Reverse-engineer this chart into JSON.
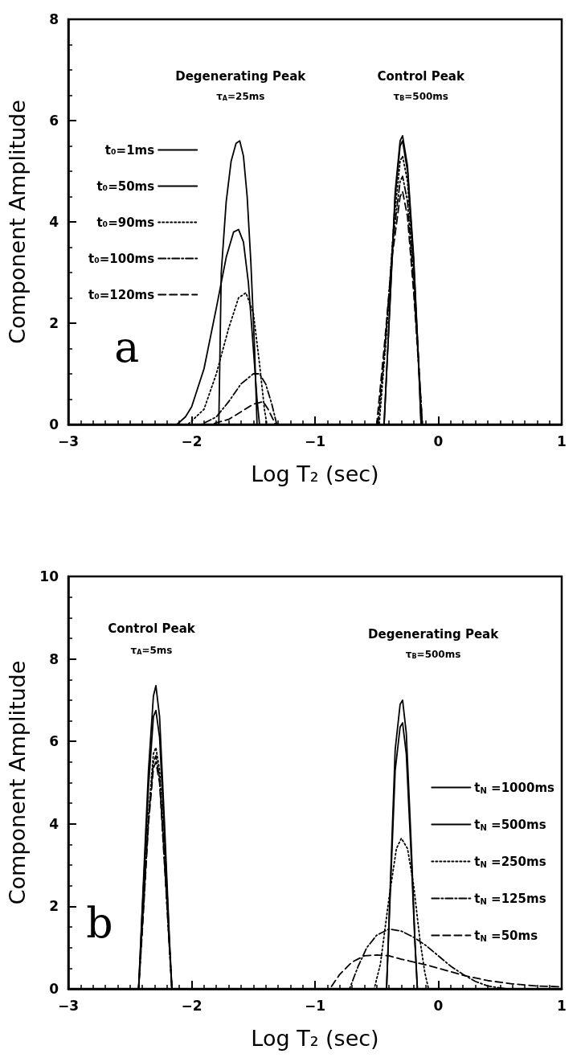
{
  "chart_data": [
    {
      "type": "line",
      "xlabel": "Log T₂ (sec)",
      "ylabel": "Component Amplitude",
      "xlim": [
        -3,
        1
      ],
      "xticks": [
        -3,
        -2,
        -1,
        0,
        1
      ],
      "ylim": [
        0,
        8
      ],
      "yticks": [
        0,
        2,
        4,
        6,
        8
      ],
      "grid": false,
      "legend": "left",
      "marker": "none",
      "annotations": [
        "Degenerating Peak",
        "τ$_{A}$=25ms",
        "Control Peak",
        "τ$_{B}$=500ms",
        "a"
      ],
      "series": [
        {
          "name": "t₀=1ms",
          "color": "#000000",
          "line_style": "solid",
          "x": [
            -3,
            -1.78,
            -1.76,
            -1.72,
            -1.68,
            -1.64,
            -1.61,
            -1.58,
            -1.55,
            -1.52,
            -1.49,
            -1.47,
            -0.44,
            -0.4,
            -0.35,
            -0.31,
            -0.29,
            -0.25,
            -0.2,
            -0.16,
            -0.14,
            1
          ],
          "values": [
            0,
            0,
            3.0,
            4.4,
            5.2,
            5.55,
            5.6,
            5.3,
            4.5,
            3.2,
            1.5,
            0,
            0,
            2.0,
            4.6,
            5.6,
            5.7,
            5.1,
            3.3,
            1.2,
            0,
            0
          ]
        },
        {
          "name": "t₀=50ms",
          "color": "#000000",
          "line_style": "solid",
          "x": [
            -3,
            -2.12,
            -2.05,
            -2.0,
            -1.9,
            -1.8,
            -1.72,
            -1.66,
            -1.62,
            -1.58,
            -1.54,
            -1.5,
            -1.47,
            -1.45,
            -0.44,
            -0.4,
            -0.35,
            -0.31,
            -0.29,
            -0.25,
            -0.2,
            -0.16,
            -0.14,
            1
          ],
          "values": [
            0,
            0,
            0.15,
            0.35,
            1.1,
            2.3,
            3.3,
            3.8,
            3.85,
            3.6,
            2.8,
            1.5,
            0.5,
            0,
            0,
            2.0,
            4.5,
            5.5,
            5.6,
            5.0,
            3.2,
            1.2,
            0,
            0
          ]
        },
        {
          "name": "t₀=90ms",
          "color": "#000000",
          "line_style": "dotted",
          "x": [
            -3,
            -2.03,
            -1.9,
            -1.8,
            -1.7,
            -1.62,
            -1.56,
            -1.5,
            -1.45,
            -1.41,
            -1.39,
            -0.48,
            -0.42,
            -0.36,
            -0.31,
            -0.29,
            -0.25,
            -0.2,
            -0.15,
            -0.13,
            1
          ],
          "values": [
            0,
            0,
            0.3,
            1.0,
            1.9,
            2.5,
            2.6,
            2.2,
            1.2,
            0.3,
            0,
            0,
            1.8,
            4.0,
            5.2,
            5.3,
            4.8,
            3.0,
            0.8,
            0,
            0
          ]
        },
        {
          "name": "t₀=100ms",
          "color": "#000000",
          "line_style": "dashdot",
          "x": [
            -3,
            -1.92,
            -1.8,
            -1.7,
            -1.6,
            -1.5,
            -1.45,
            -1.4,
            -1.35,
            -1.31,
            -0.49,
            -0.43,
            -0.37,
            -0.31,
            -0.29,
            -0.25,
            -0.2,
            -0.15,
            -0.13,
            1
          ],
          "values": [
            0,
            0,
            0.15,
            0.45,
            0.8,
            1.0,
            1.0,
            0.8,
            0.4,
            0,
            0,
            1.6,
            3.6,
            4.8,
            4.9,
            4.4,
            2.8,
            0.8,
            0,
            0
          ]
        },
        {
          "name": "t₀=120ms",
          "color": "#000000",
          "line_style": "dashed",
          "x": [
            -3,
            -1.85,
            -1.7,
            -1.6,
            -1.5,
            -1.42,
            -1.38,
            -1.34,
            -1.32,
            -0.5,
            -0.44,
            -0.37,
            -0.31,
            -0.29,
            -0.25,
            -0.2,
            -0.15,
            -0.13,
            1
          ],
          "values": [
            0,
            0,
            0.1,
            0.25,
            0.4,
            0.45,
            0.3,
            0.1,
            0,
            0,
            1.5,
            3.4,
            4.5,
            4.6,
            4.1,
            2.6,
            0.8,
            0,
            0
          ]
        }
      ]
    },
    {
      "type": "line",
      "xlabel": "Log T₂ (sec)",
      "ylabel": "Component Amplitude",
      "xlim": [
        -3,
        1
      ],
      "xticks": [
        -3,
        -2,
        -1,
        0,
        1
      ],
      "ylim": [
        0,
        10
      ],
      "yticks": [
        0,
        2,
        4,
        6,
        8,
        10
      ],
      "grid": false,
      "legend": "right",
      "marker": "none",
      "annotations": [
        "Control Peak",
        "τ$_{A}$=5ms",
        "Degenerating Peak",
        "τ$_{B}$=500ms",
        "b"
      ],
      "series": [
        {
          "name": "t$_{N}$ =1000ms",
          "color": "#000000",
          "line_style": "solid",
          "x": [
            -3,
            -2.43,
            -2.4,
            -2.35,
            -2.31,
            -2.29,
            -2.26,
            -2.22,
            -2.18,
            -2.16,
            -0.42,
            -0.39,
            -0.35,
            -0.31,
            -0.29,
            -0.26,
            -0.22,
            -0.19,
            -0.17,
            1
          ],
          "values": [
            0,
            0,
            2.0,
            5.3,
            7.1,
            7.35,
            6.6,
            4.0,
            1.2,
            0,
            0,
            2.5,
            5.8,
            6.9,
            7.0,
            6.2,
            3.5,
            1.2,
            0,
            0
          ]
        },
        {
          "name": "t$_{N}$ =500ms",
          "color": "#000000",
          "line_style": "solid",
          "x": [
            -3,
            -2.43,
            -2.4,
            -2.35,
            -2.31,
            -2.29,
            -2.26,
            -2.22,
            -2.18,
            -2.16,
            -0.42,
            -0.39,
            -0.35,
            -0.31,
            -0.29,
            -0.26,
            -0.22,
            -0.19,
            -0.17,
            1
          ],
          "values": [
            0,
            0,
            1.9,
            4.9,
            6.6,
            6.75,
            6.1,
            3.7,
            1.1,
            0,
            0,
            2.3,
            5.3,
            6.35,
            6.45,
            5.7,
            3.2,
            1.1,
            0,
            0
          ]
        },
        {
          "name": "t$_{N}$ =250ms",
          "color": "#000000",
          "line_style": "dotted",
          "x": [
            -3,
            -2.43,
            -2.4,
            -2.35,
            -2.31,
            -2.29,
            -2.26,
            -2.22,
            -2.18,
            -2.16,
            -0.52,
            -0.47,
            -0.4,
            -0.34,
            -0.3,
            -0.25,
            -0.2,
            -0.15,
            -0.11,
            -0.08,
            1
          ],
          "values": [
            0,
            0,
            1.6,
            4.2,
            5.7,
            5.85,
            5.3,
            3.2,
            1.0,
            0,
            0,
            0.6,
            2.2,
            3.4,
            3.65,
            3.4,
            2.5,
            1.2,
            0.4,
            0,
            0
          ]
        },
        {
          "name": "t$_{N}$ =125ms",
          "color": "#000000",
          "line_style": "dashdot",
          "x": [
            -3,
            -2.43,
            -2.4,
            -2.35,
            -2.31,
            -2.29,
            -2.26,
            -2.22,
            -2.18,
            -2.16,
            -0.72,
            -0.65,
            -0.58,
            -0.5,
            -0.4,
            -0.3,
            -0.2,
            -0.1,
            0,
            0.1,
            0.2,
            0.3,
            0.4,
            0.5,
            0.56,
            1
          ],
          "values": [
            0,
            0,
            1.5,
            4.1,
            5.5,
            5.65,
            5.1,
            3.1,
            1.0,
            0,
            0,
            0.55,
            1.0,
            1.3,
            1.45,
            1.4,
            1.25,
            1.05,
            0.8,
            0.55,
            0.35,
            0.18,
            0.07,
            0.02,
            0,
            0
          ]
        },
        {
          "name": "t$_{N}$ =50ms",
          "color": "#000000",
          "line_style": "dashed",
          "x": [
            -3,
            -2.43,
            -2.4,
            -2.35,
            -2.31,
            -2.29,
            -2.26,
            -2.22,
            -2.18,
            -2.16,
            -0.88,
            -0.8,
            -0.7,
            -0.6,
            -0.5,
            -0.4,
            -0.3,
            -0.2,
            -0.1,
            0,
            0.2,
            0.4,
            0.6,
            0.8,
            1
          ],
          "values": [
            0,
            0,
            1.4,
            4.0,
            5.35,
            5.5,
            5.0,
            3.0,
            1.0,
            0,
            0,
            0.35,
            0.65,
            0.8,
            0.82,
            0.8,
            0.72,
            0.65,
            0.58,
            0.5,
            0.33,
            0.2,
            0.12,
            0.07,
            0.05
          ]
        }
      ]
    }
  ]
}
